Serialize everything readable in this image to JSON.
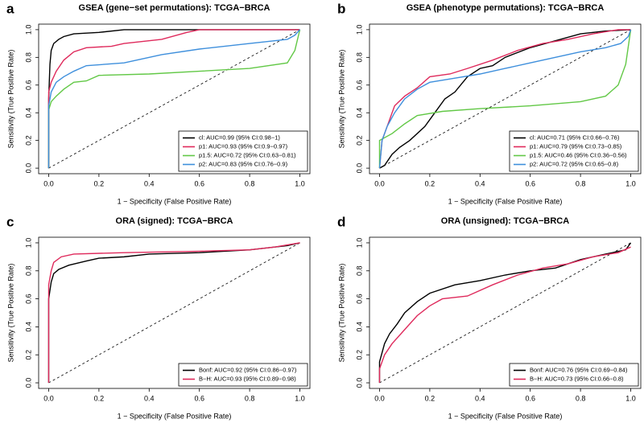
{
  "chart_data": [
    {
      "type": "line",
      "label": "a",
      "title": "GSEA (gene−set permutations): TCGA−BRCA",
      "xlabel": "1 − Specificity (False Positive Rate)",
      "ylabel": "Sensitivity (True Positive Rate)",
      "xlim": [
        -0.04,
        1.04
      ],
      "ylim": [
        -0.04,
        1.04
      ],
      "xticks": [
        {
          "value": 0,
          "label": "0.0"
        },
        0.2,
        0.4,
        0.6,
        0.8,
        {
          "value": 1,
          "label": "1.0"
        }
      ],
      "yticks": [
        {
          "value": 0,
          "label": "0.0"
        },
        0.2,
        0.4,
        0.6,
        0.8,
        {
          "value": 1,
          "label": "1.0"
        }
      ],
      "legend": "bottom-right",
      "series": [
        {
          "name": "cl: AUC=0.99 (95% CI:0.98−1)",
          "color": "#000000",
          "x": [
            0,
            0,
            0.005,
            0.01,
            0.02,
            0.04,
            0.06,
            0.1,
            0.2,
            0.3,
            1
          ],
          "values": [
            0,
            0.5,
            0.75,
            0.85,
            0.9,
            0.93,
            0.95,
            0.97,
            0.98,
            1,
            1
          ]
        },
        {
          "name": "p1: AUC=0.93 (95% CI:0.9−0.97)",
          "color": "#df2a5c",
          "x": [
            0,
            0,
            0.01,
            0.03,
            0.06,
            0.1,
            0.15,
            0.25,
            0.3,
            0.45,
            0.55,
            0.6,
            1
          ],
          "values": [
            0,
            0.55,
            0.62,
            0.7,
            0.78,
            0.84,
            0.87,
            0.88,
            0.9,
            0.93,
            0.98,
            1,
            1
          ]
        },
        {
          "name": "p1.5: AUC=0.72 (95% CI:0.63−0.81)",
          "color": "#62c846",
          "x": [
            0,
            0,
            0.01,
            0.03,
            0.06,
            0.1,
            0.15,
            0.2,
            0.4,
            0.6,
            0.8,
            0.95,
            0.98,
            1
          ],
          "values": [
            0,
            0.42,
            0.48,
            0.52,
            0.57,
            0.62,
            0.63,
            0.67,
            0.68,
            0.7,
            0.72,
            0.76,
            0.85,
            1
          ]
        },
        {
          "name": "p2: AUC=0.83 (95% CI:0.76−0.9)",
          "color": "#3e8fdc",
          "x": [
            0,
            0,
            0.01,
            0.03,
            0.06,
            0.1,
            0.15,
            0.3,
            0.45,
            0.6,
            0.8,
            0.95,
            0.98,
            1
          ],
          "values": [
            0,
            0.45,
            0.55,
            0.62,
            0.66,
            0.7,
            0.74,
            0.76,
            0.82,
            0.86,
            0.9,
            0.93,
            0.96,
            1
          ]
        }
      ]
    },
    {
      "type": "line",
      "label": "b",
      "title": "GSEA (phenotype permutations): TCGA−BRCA",
      "xlabel": "1 − Specificity (False Positive Rate)",
      "ylabel": "Sensitivity (True Positive Rate)",
      "xlim": [
        -0.04,
        1.04
      ],
      "ylim": [
        -0.04,
        1.04
      ],
      "xticks": [
        {
          "value": 0,
          "label": "0.0"
        },
        0.2,
        0.4,
        0.6,
        0.8,
        {
          "value": 1,
          "label": "1.0"
        }
      ],
      "yticks": [
        {
          "value": 0,
          "label": "0.0"
        },
        0.2,
        0.4,
        0.6,
        0.8,
        {
          "value": 1,
          "label": "1.0"
        }
      ],
      "legend": "bottom-right",
      "series": [
        {
          "name": "cl: AUC=0.71 (95% CI:0.66−0.76)",
          "color": "#000000",
          "x": [
            0,
            0.02,
            0.05,
            0.08,
            0.12,
            0.18,
            0.22,
            0.26,
            0.3,
            0.35,
            0.4,
            0.45,
            0.5,
            0.6,
            0.7,
            0.8,
            0.9,
            1
          ],
          "values": [
            0,
            0.02,
            0.1,
            0.15,
            0.2,
            0.3,
            0.4,
            0.5,
            0.55,
            0.66,
            0.72,
            0.74,
            0.8,
            0.87,
            0.92,
            0.97,
            0.99,
            1
          ]
        },
        {
          "name": "p1: AUC=0.79 (95% CI:0.73−0.85)",
          "color": "#df2a5c",
          "x": [
            0,
            0.01,
            0.03,
            0.06,
            0.1,
            0.15,
            0.2,
            0.28,
            0.35,
            0.45,
            0.55,
            0.65,
            0.75,
            0.85,
            0.95,
            1
          ],
          "values": [
            0,
            0.2,
            0.3,
            0.45,
            0.52,
            0.58,
            0.66,
            0.68,
            0.72,
            0.78,
            0.85,
            0.9,
            0.93,
            0.97,
            1,
            1
          ]
        },
        {
          "name": "p1.5: AUC=0.46 (95% CI:0.36−0.56)",
          "color": "#62c846",
          "x": [
            0,
            0,
            0.05,
            0.1,
            0.15,
            0.25,
            0.4,
            0.6,
            0.8,
            0.9,
            0.95,
            0.98,
            1
          ],
          "values": [
            0,
            0.2,
            0.25,
            0.32,
            0.38,
            0.41,
            0.43,
            0.45,
            0.48,
            0.52,
            0.6,
            0.75,
            1
          ]
        },
        {
          "name": "p2: AUC=0.72 (95% CI:0.65−0.8)",
          "color": "#3e8fdc",
          "x": [
            0,
            0.01,
            0.03,
            0.06,
            0.1,
            0.15,
            0.2,
            0.3,
            0.4,
            0.5,
            0.6,
            0.7,
            0.8,
            0.9,
            0.96,
            0.99,
            1
          ],
          "values": [
            0,
            0.2,
            0.3,
            0.4,
            0.5,
            0.57,
            0.62,
            0.65,
            0.68,
            0.72,
            0.76,
            0.8,
            0.84,
            0.87,
            0.9,
            0.95,
            1
          ]
        }
      ]
    },
    {
      "type": "line",
      "label": "c",
      "title": "ORA (signed): TCGA−BRCA",
      "xlabel": "1 − Specificity (False Positive Rate)",
      "ylabel": "Sensitivity (True Positive Rate)",
      "xlim": [
        -0.04,
        1.04
      ],
      "ylim": [
        -0.04,
        1.04
      ],
      "xticks": [
        {
          "value": 0,
          "label": "0.0"
        },
        0.2,
        0.4,
        0.6,
        0.8,
        {
          "value": 1,
          "label": "1.0"
        }
      ],
      "yticks": [
        {
          "value": 0,
          "label": "0.0"
        },
        0.2,
        0.4,
        0.6,
        0.8,
        {
          "value": 1,
          "label": "1.0"
        }
      ],
      "legend": "bottom-right",
      "series": [
        {
          "name": "Bonf: AUC=0.92 (95% CI:0.86−0.97)",
          "color": "#000000",
          "x": [
            0,
            0,
            0.01,
            0.02,
            0.04,
            0.08,
            0.15,
            0.2,
            0.3,
            0.4,
            0.6,
            0.8,
            0.95,
            1
          ],
          "values": [
            0,
            0.6,
            0.72,
            0.78,
            0.81,
            0.84,
            0.87,
            0.89,
            0.9,
            0.92,
            0.93,
            0.95,
            0.98,
            1
          ]
        },
        {
          "name": "B−H: AUC=0.93 (95% CI:0.89−0.98)",
          "color": "#df2a5c",
          "x": [
            0,
            0,
            0.01,
            0.02,
            0.05,
            0.1,
            0.3,
            0.6,
            0.8,
            0.9,
            1
          ],
          "values": [
            0,
            0.7,
            0.8,
            0.86,
            0.9,
            0.92,
            0.93,
            0.94,
            0.95,
            0.97,
            1
          ]
        }
      ]
    },
    {
      "type": "line",
      "label": "d",
      "title": "ORA (unsigned): TCGA−BRCA",
      "xlabel": "1 − Specificity (False Positive Rate)",
      "ylabel": "Sensitivity (True Positive Rate)",
      "xlim": [
        -0.04,
        1.04
      ],
      "ylim": [
        -0.04,
        1.04
      ],
      "xticks": [
        {
          "value": 0,
          "label": "0.0"
        },
        0.2,
        0.4,
        0.6,
        0.8,
        {
          "value": 1,
          "label": "1.0"
        }
      ],
      "yticks": [
        {
          "value": 0,
          "label": "0.0"
        },
        0.2,
        0.4,
        0.6,
        0.8,
        {
          "value": 1,
          "label": "1.0"
        }
      ],
      "legend": "bottom-right",
      "series": [
        {
          "name": "Bonf: AUC=0.76 (95% CI:0.69−0.84)",
          "color": "#000000",
          "x": [
            0,
            0,
            0.02,
            0.04,
            0.07,
            0.1,
            0.15,
            0.2,
            0.3,
            0.4,
            0.5,
            0.6,
            0.7,
            0.8,
            0.9,
            0.98,
            1
          ],
          "values": [
            0,
            0.15,
            0.28,
            0.35,
            0.42,
            0.5,
            0.58,
            0.64,
            0.7,
            0.73,
            0.77,
            0.8,
            0.82,
            0.88,
            0.92,
            0.95,
            1
          ]
        },
        {
          "name": "B−H: AUC=0.73 (95% CI:0.66−0.8)",
          "color": "#df2a5c",
          "x": [
            0,
            0,
            0.02,
            0.05,
            0.1,
            0.15,
            0.2,
            0.25,
            0.35,
            0.45,
            0.55,
            0.65,
            0.75,
            0.85,
            0.95,
            1
          ],
          "values": [
            0,
            0.1,
            0.2,
            0.28,
            0.38,
            0.48,
            0.55,
            0.6,
            0.62,
            0.7,
            0.77,
            0.82,
            0.85,
            0.9,
            0.93,
            0.97
          ]
        }
      ]
    }
  ]
}
